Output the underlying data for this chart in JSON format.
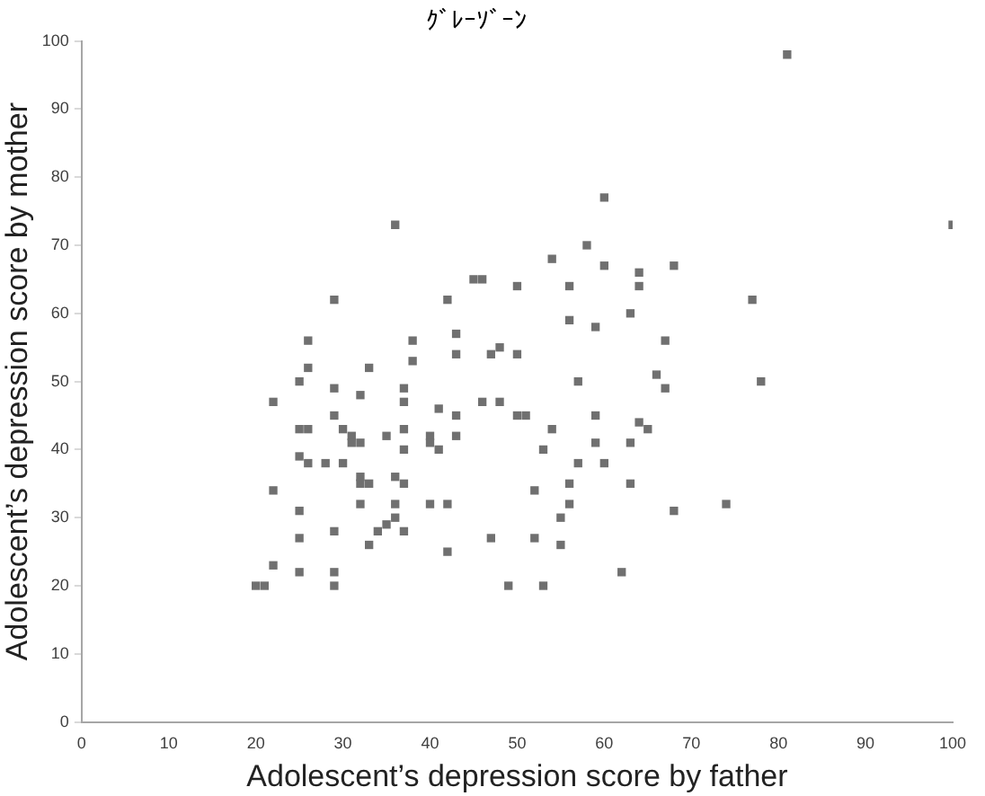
{
  "chart_data": {
    "type": "scatter",
    "title": "ｸﾞﾚｰｿﾞｰﾝ",
    "xlabel": "Adolescent’s depression score by father",
    "ylabel": "Adolescent’s depression score by mother",
    "xlim": [
      0,
      100
    ],
    "xticks": [
      0,
      10,
      20,
      30,
      40,
      50,
      60,
      70,
      80,
      90,
      100
    ],
    "ylim": [
      0,
      100
    ],
    "yticks": [
      0,
      10,
      20,
      30,
      40,
      50,
      60,
      70,
      80,
      90,
      100
    ],
    "grid": false,
    "legend": false,
    "marker": "square",
    "series": [
      {
        "color": "#707070",
        "x": [
          81,
          100,
          36,
          60,
          58,
          54,
          60,
          64,
          68,
          45,
          46,
          50,
          56,
          64,
          29,
          42,
          77,
          63,
          56,
          59,
          26,
          38,
          67,
          43,
          47,
          48,
          50,
          43,
          38,
          26,
          33,
          66,
          25,
          57,
          78,
          29,
          37,
          67,
          32,
          22,
          37,
          46,
          48,
          41,
          29,
          43,
          50,
          51,
          59,
          64,
          25,
          26,
          30,
          37,
          54,
          65,
          31,
          35,
          40,
          43,
          31,
          32,
          40,
          59,
          63,
          37,
          41,
          53,
          25,
          26,
          28,
          30,
          57,
          60,
          32,
          36,
          32,
          33,
          37,
          56,
          63,
          22,
          52,
          25,
          68,
          32,
          36,
          40,
          42,
          56,
          74,
          36,
          55,
          35,
          34,
          29,
          37,
          25,
          47,
          52,
          33,
          55,
          42,
          22,
          25,
          29,
          62,
          20,
          21,
          29,
          49,
          53
        ],
        "values": [
          98,
          73,
          73,
          77,
          70,
          68,
          67,
          66,
          67,
          65,
          65,
          64,
          64,
          64,
          62,
          62,
          62,
          60,
          59,
          58,
          56,
          56,
          56,
          57,
          54,
          55,
          54,
          54,
          53,
          52,
          52,
          51,
          50,
          50,
          50,
          49,
          49,
          49,
          48,
          47,
          47,
          47,
          47,
          46,
          45,
          45,
          45,
          45,
          45,
          44,
          43,
          43,
          43,
          43,
          43,
          43,
          42,
          42,
          42,
          42,
          41,
          41,
          41,
          41,
          41,
          40,
          40,
          40,
          39,
          38,
          38,
          38,
          38,
          38,
          36,
          36,
          35,
          35,
          35,
          35,
          35,
          34,
          34,
          31,
          31,
          32,
          32,
          32,
          32,
          32,
          32,
          30,
          30,
          29,
          28,
          28,
          28,
          27,
          27,
          27,
          26,
          26,
          25,
          23,
          22,
          22,
          22,
          20,
          20,
          20,
          20,
          20
        ]
      }
    ]
  }
}
